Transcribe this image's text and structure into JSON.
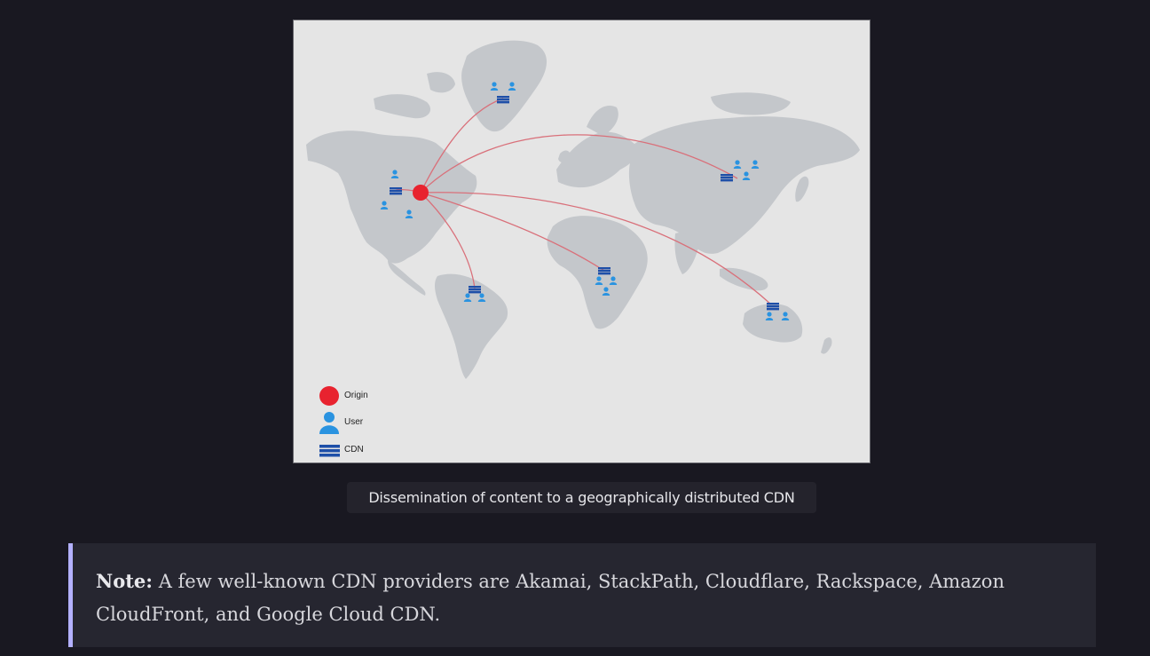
{
  "figure": {
    "legend": {
      "origin": "Origin",
      "user": "User",
      "cdn": "CDN"
    },
    "colors": {
      "background": "#e5e5e5",
      "land": "#c4c7cb",
      "origin": "#e8232f",
      "user": "#2a93e0",
      "cdn": "#1e4fa8",
      "link": "#d9707a"
    }
  },
  "caption": "Dissemination of content to a geographically distributed CDN",
  "note": {
    "label": "Note:",
    "text": " A few well-known CDN providers are Akamai, StackPath, Cloudflare, Rackspace, Amazon CloudFront, and Google Cloud CDN."
  }
}
